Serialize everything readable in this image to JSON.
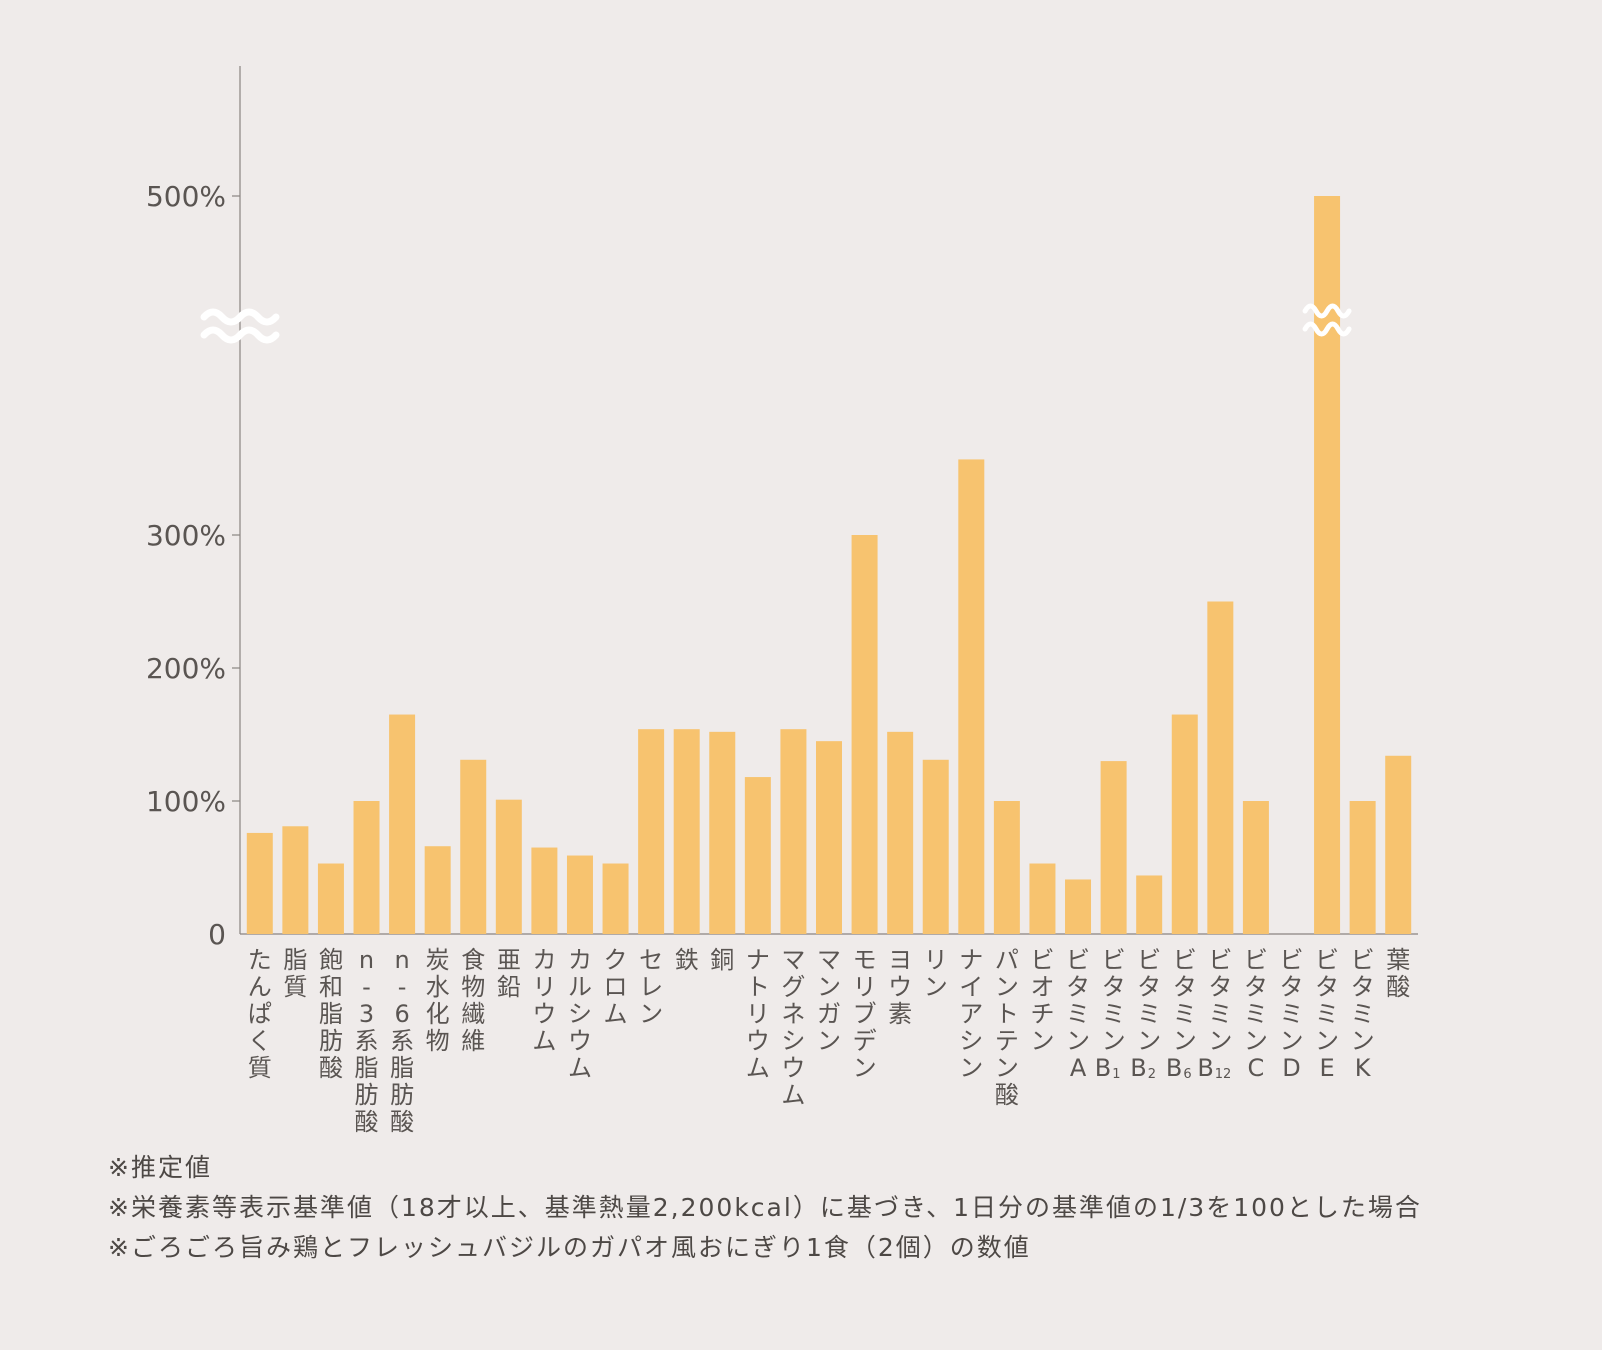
{
  "chart_data": {
    "type": "bar",
    "title": "",
    "xlabel": "",
    "ylabel": "",
    "y_ticks": [
      {
        "value": 0,
        "label": "0"
      },
      {
        "value": 100,
        "label": "100%"
      },
      {
        "value": 200,
        "label": "200%"
      },
      {
        "value": 300,
        "label": "300%"
      },
      {
        "value": 500,
        "label": "500%"
      }
    ],
    "y_axis_break": {
      "from": 350,
      "to": 500,
      "symbol": "≈"
    },
    "ylim": [
      0,
      500
    ],
    "bar_color": "#f7c36f",
    "axis_color": "#8a8481",
    "categories": [
      "たんぱく質",
      "脂質",
      "飽和脂肪酸",
      "n-3系脂肪酸",
      "n-6系脂肪酸",
      "炭水化物",
      "食物繊維",
      "亜鉛",
      "カリウム",
      "カルシウム",
      "クロム",
      "セレン",
      "鉄",
      "銅",
      "ナトリウム",
      "マグネシウム",
      "マンガン",
      "モリブデン",
      "ヨウ素",
      "リン",
      "ナイアシン",
      "パントテン酸",
      "ビオチン",
      "ビタミンA",
      "ビタミンB1",
      "ビタミンB2",
      "ビタミンB6",
      "ビタミンB12",
      "ビタミンC",
      "ビタミンD",
      "ビタミンE",
      "ビタミンK",
      "葉酸"
    ],
    "category_labels": [
      [
        {
          "t": "た"
        },
        {
          "t": "ん"
        },
        {
          "t": "ぱ"
        },
        {
          "t": "く"
        },
        {
          "t": "質"
        }
      ],
      [
        {
          "t": "脂"
        },
        {
          "t": "質"
        }
      ],
      [
        {
          "t": "飽"
        },
        {
          "t": "和"
        },
        {
          "t": "脂"
        },
        {
          "t": "肪"
        },
        {
          "t": "酸"
        }
      ],
      [
        {
          "t": "n"
        },
        {
          "t": "-"
        },
        {
          "t": "3"
        },
        {
          "t": "系"
        },
        {
          "t": "脂"
        },
        {
          "t": "肪"
        },
        {
          "t": "酸"
        }
      ],
      [
        {
          "t": "n"
        },
        {
          "t": "-"
        },
        {
          "t": "6"
        },
        {
          "t": "系"
        },
        {
          "t": "脂"
        },
        {
          "t": "肪"
        },
        {
          "t": "酸"
        }
      ],
      [
        {
          "t": "炭"
        },
        {
          "t": "水"
        },
        {
          "t": "化"
        },
        {
          "t": "物"
        }
      ],
      [
        {
          "t": "食"
        },
        {
          "t": "物"
        },
        {
          "t": "繊"
        },
        {
          "t": "維"
        }
      ],
      [
        {
          "t": "亜"
        },
        {
          "t": "鉛"
        }
      ],
      [
        {
          "t": "カ"
        },
        {
          "t": "リ"
        },
        {
          "t": "ウ"
        },
        {
          "t": "ム"
        }
      ],
      [
        {
          "t": "カ"
        },
        {
          "t": "ル"
        },
        {
          "t": "シ"
        },
        {
          "t": "ウ"
        },
        {
          "t": "ム"
        }
      ],
      [
        {
          "t": "ク"
        },
        {
          "t": "ロ"
        },
        {
          "t": "ム"
        }
      ],
      [
        {
          "t": "セ"
        },
        {
          "t": "レ"
        },
        {
          "t": "ン"
        }
      ],
      [
        {
          "t": "鉄"
        }
      ],
      [
        {
          "t": "銅"
        }
      ],
      [
        {
          "t": "ナ"
        },
        {
          "t": "ト"
        },
        {
          "t": "リ"
        },
        {
          "t": "ウ"
        },
        {
          "t": "ム"
        }
      ],
      [
        {
          "t": "マ"
        },
        {
          "t": "グ"
        },
        {
          "t": "ネ"
        },
        {
          "t": "シ"
        },
        {
          "t": "ウ"
        },
        {
          "t": "ム"
        }
      ],
      [
        {
          "t": "マ"
        },
        {
          "t": "ン"
        },
        {
          "t": "ガ"
        },
        {
          "t": "ン"
        }
      ],
      [
        {
          "t": "モ"
        },
        {
          "t": "リ"
        },
        {
          "t": "ブ"
        },
        {
          "t": "デ"
        },
        {
          "t": "ン"
        }
      ],
      [
        {
          "t": "ヨ"
        },
        {
          "t": "ウ"
        },
        {
          "t": "素"
        }
      ],
      [
        {
          "t": "リ"
        },
        {
          "t": "ン"
        }
      ],
      [
        {
          "t": "ナ"
        },
        {
          "t": "イ"
        },
        {
          "t": "ア"
        },
        {
          "t": "シ"
        },
        {
          "t": "ン"
        }
      ],
      [
        {
          "t": "パ"
        },
        {
          "t": "ン"
        },
        {
          "t": "ト"
        },
        {
          "t": "テ"
        },
        {
          "t": "ン"
        },
        {
          "t": "酸"
        }
      ],
      [
        {
          "t": "ビ"
        },
        {
          "t": "オ"
        },
        {
          "t": "チ"
        },
        {
          "t": "ン"
        }
      ],
      [
        {
          "t": "ビ"
        },
        {
          "t": "タ"
        },
        {
          "t": "ミ"
        },
        {
          "t": "ン"
        },
        {
          "t": "A"
        }
      ],
      [
        {
          "t": "ビ"
        },
        {
          "t": "タ"
        },
        {
          "t": "ミ"
        },
        {
          "t": "ン"
        },
        {
          "t": "B",
          "sub": "1"
        }
      ],
      [
        {
          "t": "ビ"
        },
        {
          "t": "タ"
        },
        {
          "t": "ミ"
        },
        {
          "t": "ン"
        },
        {
          "t": "B",
          "sub": "2"
        }
      ],
      [
        {
          "t": "ビ"
        },
        {
          "t": "タ"
        },
        {
          "t": "ミ"
        },
        {
          "t": "ン"
        },
        {
          "t": "B",
          "sub": "6"
        }
      ],
      [
        {
          "t": "ビ"
        },
        {
          "t": "タ"
        },
        {
          "t": "ミ"
        },
        {
          "t": "ン"
        },
        {
          "t": "B",
          "sub": "12"
        }
      ],
      [
        {
          "t": "ビ"
        },
        {
          "t": "タ"
        },
        {
          "t": "ミ"
        },
        {
          "t": "ン"
        },
        {
          "t": "C"
        }
      ],
      [
        {
          "t": "ビ"
        },
        {
          "t": "タ"
        },
        {
          "t": "ミ"
        },
        {
          "t": "ン"
        },
        {
          "t": "D"
        }
      ],
      [
        {
          "t": "ビ"
        },
        {
          "t": "タ"
        },
        {
          "t": "ミ"
        },
        {
          "t": "ン"
        },
        {
          "t": "E"
        }
      ],
      [
        {
          "t": "ビ"
        },
        {
          "t": "タ"
        },
        {
          "t": "ミ"
        },
        {
          "t": "ン"
        },
        {
          "t": "K"
        }
      ],
      [
        {
          "t": "葉"
        },
        {
          "t": "酸"
        }
      ]
    ],
    "values": [
      76,
      81,
      53,
      100,
      165,
      66,
      131,
      101,
      65,
      59,
      53,
      154,
      154,
      152,
      118,
      154,
      145,
      300,
      152,
      131,
      355,
      100,
      53,
      41,
      130,
      44,
      165,
      250,
      100,
      0,
      500,
      100,
      134
    ]
  },
  "notes": [
    "※推定値",
    "※栄養素等表示基準値（18才以上、基準熱量2,200kcal）に基づき、1日分の基準値の1/3を100とした場合",
    "※ごろごろ旨み鶏とフレッシュバジルのガパオ風おにぎり1食（2個）の数値"
  ]
}
